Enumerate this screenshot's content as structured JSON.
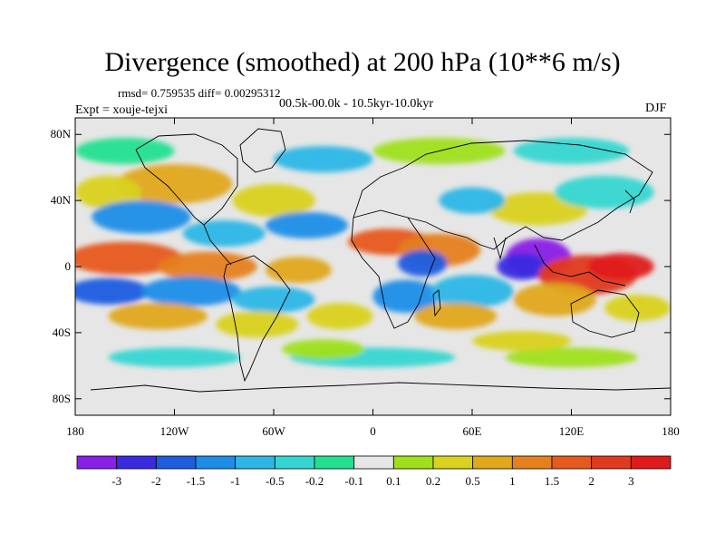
{
  "title": "Divergence (smoothed) at 200 hPa (10**6 m/s)",
  "stats": "rmsd= 0.759535 diff= 0.00295312",
  "period": "00.5k-00.0k - 10.5kyr-10.0kyr",
  "experiment": "Expt = xouje-tejxi",
  "season": "DJF",
  "axes": {
    "y_ticks": [
      {
        "label": "80N",
        "lat": 80
      },
      {
        "label": "40N",
        "lat": 40
      },
      {
        "label": "0",
        "lat": 0
      },
      {
        "label": "40S",
        "lat": -40
      },
      {
        "label": "80S",
        "lat": -80
      }
    ],
    "x_ticks": [
      {
        "label": "180",
        "lon": -180
      },
      {
        "label": "120W",
        "lon": -120
      },
      {
        "label": "60W",
        "lon": -60
      },
      {
        "label": "0",
        "lon": 0
      },
      {
        "label": "60E",
        "lon": 60
      },
      {
        "label": "120E",
        "lon": 120
      },
      {
        "label": "180",
        "lon": 180
      }
    ],
    "lon_range": [
      -180,
      180
    ],
    "lat_range": [
      -90,
      90
    ]
  },
  "colorbar": {
    "labels": [
      "-3",
      "-2",
      "-1.5",
      "-1",
      "-0.5",
      "-0.2",
      "-0.1",
      "0.1",
      "0.2",
      "0.5",
      "1",
      "1.5",
      "2",
      "3"
    ],
    "colors": [
      "#8a1fe6",
      "#3a2ae0",
      "#1f5de0",
      "#1d8ee8",
      "#2bb6e6",
      "#35d6d2",
      "#22e08f",
      "#e6e6e6",
      "#9fe01a",
      "#d9d21f",
      "#e0a81a",
      "#e6801d",
      "#e65a1d",
      "#e03a1f",
      "#e01a1a"
    ]
  },
  "field_colors": {
    "background_land_ocean": "#e6e6e6",
    "coast": "#000000"
  }
}
